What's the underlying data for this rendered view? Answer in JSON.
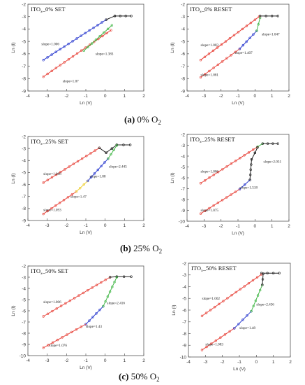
{
  "captions": [
    {
      "letter": "(a)",
      "text": " 0% O",
      "sub": "2"
    },
    {
      "letter": "(b)",
      "text": " 25% O",
      "sub": "2"
    },
    {
      "letter": "(c)",
      "text": " 50% O",
      "sub": "2"
    }
  ],
  "colors": {
    "ohmic": "#e8483f",
    "child": "#2f3fd0",
    "trap": "#45b84a",
    "high": "#222222",
    "transition": "#f0d23a",
    "axis": "#555555"
  },
  "chart_data": [
    {
      "type": "scatter",
      "title": "ITO",
      "title_sub": "x",
      "title_rest": "_0% SET",
      "xlabel": "Ln (V)",
      "ylabel": "Ln (I)",
      "xlim": [
        -4,
        2
      ],
      "ylim": [
        -9,
        -2
      ],
      "xticks": [
        "-4",
        "-3",
        "-2",
        "-1",
        "0",
        "1",
        "2"
      ],
      "yticks": [
        "-2",
        "-3",
        "-4",
        "-5",
        "-6",
        "-7",
        "-8",
        "-9"
      ],
      "annotations": [
        "slope=1.006",
        "slope=1.383",
        "slope=1.07"
      ],
      "series": [
        {
          "role": "ohmic",
          "x": [
            -3.2,
            0.3
          ],
          "y": [
            -7.85,
            -4.1
          ]
        },
        {
          "role": "trap",
          "x": [
            -1.1,
            0.35
          ],
          "y": [
            -5.75,
            -3.7
          ]
        },
        {
          "role": "child",
          "x": [
            -3.2,
            0.05
          ],
          "y": [
            -6.5,
            -3.25
          ]
        },
        {
          "role": "high",
          "x": [
            0.05,
            0.5,
            1.35
          ],
          "y": [
            -3.25,
            -2.95,
            -2.95
          ]
        }
      ]
    },
    {
      "type": "scatter",
      "title": "ITO",
      "title_sub": "x",
      "title_rest": "_0% RESET",
      "xlabel": "Ln (V)",
      "ylabel": "Ln (I)",
      "xlim": [
        -4,
        2
      ],
      "ylim": [
        -9,
        -2
      ],
      "xticks": [
        "-4",
        "-3",
        "-2",
        "-1",
        "0",
        "1",
        "2"
      ],
      "yticks": [
        "-2",
        "-3",
        "-4",
        "-5",
        "-6",
        "-7",
        "-8",
        "-9"
      ],
      "annotations": [
        "slope=1.003",
        "slope=1.047",
        "slope=1.407",
        "slope=1.081"
      ],
      "series": [
        {
          "role": "ohmic",
          "x": [
            -3.2,
            0.25
          ],
          "y": [
            -6.5,
            -3.0
          ]
        },
        {
          "role": "ohmic",
          "x": [
            -3.2,
            -0.9
          ],
          "y": [
            -7.9,
            -5.6
          ]
        },
        {
          "role": "child",
          "x": [
            -0.9,
            0.1
          ],
          "y": [
            -5.6,
            -4.15
          ]
        },
        {
          "role": "trap",
          "x": [
            0.1,
            0.3
          ],
          "y": [
            -4.15,
            -3.1
          ]
        },
        {
          "role": "high",
          "x": [
            0.3,
            1.35
          ],
          "y": [
            -2.95,
            -2.95
          ]
        }
      ]
    },
    {
      "type": "scatter",
      "title": "ITO",
      "title_sub": "x",
      "title_rest": "_25% SET",
      "xlabel": "Ln (V)",
      "ylabel": "Ln (I)",
      "xlim": [
        -4,
        2
      ],
      "ylim": [
        -9,
        -2
      ],
      "xticks": [
        "-4",
        "-3",
        "-2",
        "-1",
        "0",
        "1",
        "2"
      ],
      "yticks": [
        "-2",
        "-3",
        "-4",
        "-5",
        "-6",
        "-7",
        "-8",
        "-9"
      ],
      "annotations": [
        "slope=1.006",
        "slope=2.445",
        "slope=1.88",
        "slope=1.47",
        "slope=1.093"
      ],
      "series": [
        {
          "role": "ohmic",
          "x": [
            -3.2,
            -0.3
          ],
          "y": [
            -5.85,
            -2.95
          ]
        },
        {
          "role": "high",
          "x": [
            -0.3,
            0.05,
            0.35,
            0.6,
            1.3
          ],
          "y": [
            -2.95,
            -3.35,
            -3.0,
            -2.7,
            -2.7
          ]
        },
        {
          "role": "ohmic",
          "x": [
            -3.2,
            -1.5
          ],
          "y": [
            -8.45,
            -6.6
          ]
        },
        {
          "role": "transition",
          "x": [
            -1.5,
            -0.9
          ],
          "y": [
            -6.6,
            -5.7
          ]
        },
        {
          "role": "child",
          "x": [
            -0.9,
            0.15
          ],
          "y": [
            -5.7,
            -3.85
          ]
        },
        {
          "role": "trap",
          "x": [
            0.15,
            0.6
          ],
          "y": [
            -3.85,
            -2.75
          ]
        }
      ]
    },
    {
      "type": "scatter",
      "title": "ITO",
      "title_sub": "x",
      "title_rest": "_25% RESET",
      "xlabel": "Ln (V)",
      "ylabel": "Ln (I)",
      "xlim": [
        -4,
        2
      ],
      "ylim": [
        -10,
        -2
      ],
      "xticks": [
        "-4",
        "-3",
        "-2",
        "-1",
        "0",
        "1",
        "2"
      ],
      "yticks": [
        "-2",
        "-3",
        "-4",
        "-5",
        "-6",
        "-7",
        "-8",
        "-9",
        "-10"
      ],
      "annotations": [
        "slope=1.006",
        "slope=2.031",
        "slope=1.518",
        "slope=1.075"
      ],
      "series": [
        {
          "role": "ohmic",
          "x": [
            -3.2,
            0.15
          ],
          "y": [
            -6.5,
            -3.15
          ]
        },
        {
          "role": "trap",
          "x": [
            0.15,
            0.45
          ],
          "y": [
            -3.15,
            -2.85
          ]
        },
        {
          "role": "high",
          "x": [
            0.45,
            1.35
          ],
          "y": [
            -2.85,
            -2.85
          ]
        },
        {
          "role": "ohmic",
          "x": [
            -3.2,
            -0.9
          ],
          "y": [
            -9.3,
            -7.05
          ]
        },
        {
          "role": "child",
          "x": [
            -0.9,
            -0.3
          ],
          "y": [
            -7.05,
            -6.2
          ]
        },
        {
          "role": "high",
          "x": [
            -0.3,
            -0.2,
            0.0,
            0.15
          ],
          "y": [
            -6.2,
            -4.3,
            -3.7,
            -3.2
          ]
        }
      ]
    },
    {
      "type": "scatter",
      "title": "ITO",
      "title_sub": "x",
      "title_rest": "_50% SET",
      "xlabel": "Ln (V)",
      "ylabel": "Ln (I)",
      "xlim": [
        -4,
        2
      ],
      "ylim": [
        -10,
        -2
      ],
      "xticks": [
        "-4",
        "-3",
        "-2",
        "-1",
        "0",
        "1",
        "2"
      ],
      "yticks": [
        "-2",
        "-3",
        "-4",
        "-5",
        "-6",
        "-7",
        "-8",
        "-9",
        "-10"
      ],
      "annotations": [
        "slope=1.006",
        "slope=2.416",
        "slope=1.43",
        "slope=1.076"
      ],
      "series": [
        {
          "role": "ohmic",
          "x": [
            -3.2,
            0.25
          ],
          "y": [
            -6.5,
            -3.0
          ]
        },
        {
          "role": "high",
          "x": [
            0.25,
            0.6,
            1.35
          ],
          "y": [
            -3.0,
            -2.95,
            -2.95
          ]
        },
        {
          "role": "ohmic",
          "x": [
            -3.2,
            -1.0
          ],
          "y": [
            -9.3,
            -7.2
          ]
        },
        {
          "role": "child",
          "x": [
            -1.0,
            -0.1
          ],
          "y": [
            -7.2,
            -5.6
          ]
        },
        {
          "role": "trap",
          "x": [
            -0.1,
            0.6
          ],
          "y": [
            -5.6,
            -3.0
          ]
        }
      ]
    },
    {
      "type": "scatter",
      "title": "ITO",
      "title_sub": "x",
      "title_rest": "_50% RESET",
      "xlabel": "Ln (V)",
      "ylabel": "Ln (I)",
      "xlim": [
        -4,
        2
      ],
      "ylim": [
        -10,
        -2
      ],
      "xticks": [
        "-4",
        "-3",
        "-2",
        "-1",
        "0",
        "1",
        "2"
      ],
      "yticks": [
        "-2",
        "-3",
        "-4",
        "-5",
        "-6",
        "-7",
        "-8",
        "-9",
        "-10"
      ],
      "annotations": [
        "slope=1.002",
        "slope=2.456",
        "slope=1.48",
        "slope=1.083"
      ],
      "series": [
        {
          "role": "ohmic",
          "x": [
            -3.2,
            0.3
          ],
          "y": [
            -6.5,
            -2.95
          ]
        },
        {
          "role": "high",
          "x": [
            0.3,
            1.35
          ],
          "y": [
            -2.85,
            -2.85
          ]
        },
        {
          "role": "ohmic",
          "x": [
            -3.2,
            -1.3
          ],
          "y": [
            -9.4,
            -7.55
          ]
        },
        {
          "role": "child",
          "x": [
            -1.3,
            -0.3
          ],
          "y": [
            -7.55,
            -6.1
          ]
        },
        {
          "role": "trap",
          "x": [
            -0.3,
            0.35
          ],
          "y": [
            -6.1,
            -3.85
          ]
        },
        {
          "role": "high",
          "x": [
            0.35,
            0.4
          ],
          "y": [
            -3.85,
            -2.9
          ]
        }
      ]
    }
  ]
}
